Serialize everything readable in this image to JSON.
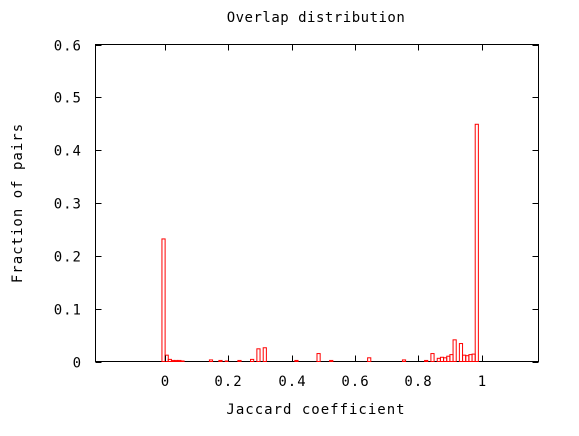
{
  "chart_data": {
    "type": "bar",
    "title": "Overlap distribution",
    "xlabel": "Jaccard coefficient",
    "ylabel": "Fraction of pairs",
    "xlim": [
      -0.22,
      1.18
    ],
    "ylim": [
      0,
      0.6
    ],
    "xticks": [
      {
        "value": 0,
        "label": "0"
      },
      {
        "value": 0.2,
        "label": "0.2"
      },
      {
        "value": 0.4,
        "label": "0.4"
      },
      {
        "value": 0.6,
        "label": "0.6"
      },
      {
        "value": 0.8,
        "label": "0.8"
      },
      {
        "value": 1,
        "label": "1"
      }
    ],
    "yticks": [
      {
        "value": 0,
        "label": "0"
      },
      {
        "value": 0.1,
        "label": "0.1"
      },
      {
        "value": 0.2,
        "label": "0.2"
      },
      {
        "value": 0.3,
        "label": "0.3"
      },
      {
        "value": 0.4,
        "label": "0.4"
      },
      {
        "value": 0.5,
        "label": "0.5"
      },
      {
        "value": 0.6,
        "label": "0.6"
      }
    ],
    "grid": false,
    "legend": "none",
    "bar_color": "#ff0000",
    "bin_width": 0.01,
    "bins": [
      {
        "x": -0.01,
        "y": 0.232
      },
      {
        "x": 0.0,
        "y": 0.012
      },
      {
        "x": 0.01,
        "y": 0.004
      },
      {
        "x": 0.02,
        "y": 0.002
      },
      {
        "x": 0.03,
        "y": 0.002
      },
      {
        "x": 0.04,
        "y": 0.002
      },
      {
        "x": 0.05,
        "y": 0.001
      },
      {
        "x": 0.14,
        "y": 0.003
      },
      {
        "x": 0.17,
        "y": 0.002
      },
      {
        "x": 0.19,
        "y": 0.001
      },
      {
        "x": 0.23,
        "y": 0.002
      },
      {
        "x": 0.27,
        "y": 0.004
      },
      {
        "x": 0.29,
        "y": 0.024
      },
      {
        "x": 0.31,
        "y": 0.026
      },
      {
        "x": 0.41,
        "y": 0.002
      },
      {
        "x": 0.48,
        "y": 0.015
      },
      {
        "x": 0.52,
        "y": 0.002
      },
      {
        "x": 0.64,
        "y": 0.007
      },
      {
        "x": 0.75,
        "y": 0.003
      },
      {
        "x": 0.82,
        "y": 0.002
      },
      {
        "x": 0.84,
        "y": 0.015
      },
      {
        "x": 0.86,
        "y": 0.006
      },
      {
        "x": 0.87,
        "y": 0.008
      },
      {
        "x": 0.88,
        "y": 0.007
      },
      {
        "x": 0.89,
        "y": 0.01
      },
      {
        "x": 0.9,
        "y": 0.013
      },
      {
        "x": 0.91,
        "y": 0.041
      },
      {
        "x": 0.93,
        "y": 0.034
      },
      {
        "x": 0.94,
        "y": 0.012
      },
      {
        "x": 0.95,
        "y": 0.011
      },
      {
        "x": 0.96,
        "y": 0.013
      },
      {
        "x": 0.97,
        "y": 0.014
      },
      {
        "x": 0.98,
        "y": 0.449
      }
    ]
  }
}
